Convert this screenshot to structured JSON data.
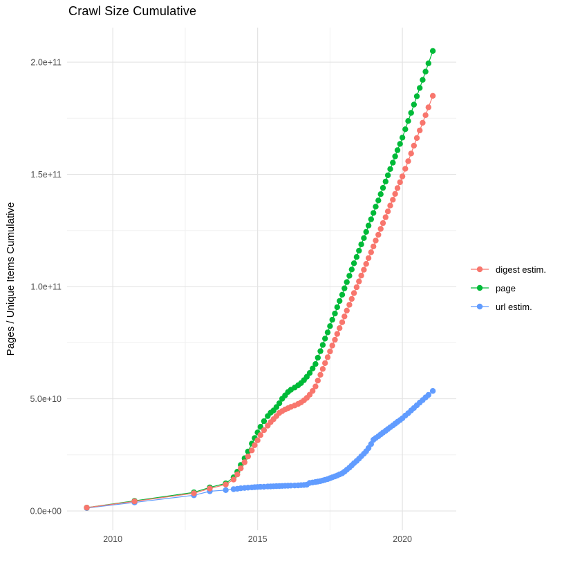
{
  "title": "Crawl Size Cumulative",
  "y_axis_label": "Pages / Unique Items Cumulative",
  "legend": {
    "items": [
      {
        "label": "digest estim.",
        "color": "#F8766D"
      },
      {
        "label": "page",
        "color": "#00BA38"
      },
      {
        "label": "url estim.",
        "color": "#619CFF"
      }
    ]
  },
  "colors": {
    "background": "#FFFFFF",
    "grid_major": "#E3E3E3",
    "grid_minor": "#F0F0F0",
    "tick_text": "#4D4D4D",
    "title_text": "#000000"
  },
  "chart_data": {
    "type": "scatter",
    "title": "Crawl Size Cumulative",
    "xlabel": "",
    "ylabel": "Pages / Unique Items Cumulative",
    "x_unit": "year",
    "y_unit": "pages / unique items (cumulative)",
    "grid": true,
    "legend_position": "right",
    "xlim": [
      2008.42,
      2021.86
    ],
    "ylim": [
      -8600000000.0,
      215400000000.0
    ],
    "x_ticks": [
      {
        "value": 2010,
        "label": "2010"
      },
      {
        "value": 2015,
        "label": "2015"
      },
      {
        "value": 2020,
        "label": "2020"
      }
    ],
    "y_ticks": [
      {
        "value": 0.0,
        "label": "0.0e+00"
      },
      {
        "value": 50000000000.0,
        "label": "5.0e+10"
      },
      {
        "value": 100000000000.0,
        "label": "1.0e+11"
      },
      {
        "value": 150000000000.0,
        "label": "1.5e+11"
      },
      {
        "value": 200000000000.0,
        "label": "2.0e+11"
      }
    ],
    "x_minor_gridlines": [
      2012.5,
      2017.5
    ],
    "y_minor_gridlines": [
      25000000000.0,
      75000000000.0,
      125000000000.0,
      175000000000.0
    ],
    "x": [
      2009.1,
      2010.75,
      2012.8,
      2013.35,
      2013.9,
      2014.17,
      2014.3,
      2014.42,
      2014.55,
      2014.67,
      2014.8,
      2014.9,
      2015.0,
      2015.1,
      2015.22,
      2015.35,
      2015.45,
      2015.55,
      2015.65,
      2015.75,
      2015.85,
      2015.95,
      2016.05,
      2016.15,
      2016.28,
      2016.4,
      2016.5,
      2016.6,
      2016.7,
      2016.8,
      2016.9,
      2017.0,
      2017.08,
      2017.17,
      2017.25,
      2017.33,
      2017.42,
      2017.5,
      2017.58,
      2017.67,
      2017.75,
      2017.83,
      2017.92,
      2018.0,
      2018.08,
      2018.17,
      2018.25,
      2018.33,
      2018.42,
      2018.5,
      2018.58,
      2018.67,
      2018.75,
      2018.83,
      2018.92,
      2019.0,
      2019.08,
      2019.17,
      2019.25,
      2019.33,
      2019.42,
      2019.5,
      2019.58,
      2019.67,
      2019.75,
      2019.83,
      2019.92,
      2020.0,
      2020.1,
      2020.2,
      2020.3,
      2020.4,
      2020.5,
      2020.6,
      2020.7,
      2020.8,
      2020.9,
      2021.05
    ],
    "series": [
      {
        "name": "digest estim.",
        "color": "#F8766D",
        "values": [
          1500000000.0,
          4300000000.0,
          7900000000.0,
          10000000000.0,
          11800000000.0,
          14000000000.0,
          16300000000.0,
          19000000000.0,
          21700000000.0,
          24300000000.0,
          27000000000.0,
          29300000000.0,
          31500000000.0,
          33800000000.0,
          36000000000.0,
          38000000000.0,
          39600000000.0,
          40900000000.0,
          42300000000.0,
          43700000000.0,
          44500000000.0,
          45200000000.0,
          45800000000.0,
          46400000000.0,
          47000000000.0,
          47700000000.0,
          48400000000.0,
          49300000000.0,
          50400000000.0,
          51800000000.0,
          53500000000.0,
          55500000000.0,
          58100000000.0,
          60700000000.0,
          63300000000.0,
          65900000000.0,
          68500000000.0,
          71100000000.0,
          73700000000.0,
          76300000000.0,
          78900000000.0,
          81500000000.0,
          84100000000.0,
          86700000000.0,
          89300000000.0,
          91900000000.0,
          94500000000.0,
          97100000000.0,
          99700000000.0,
          102300000000.0,
          104900000000.0,
          107500000000.0,
          110100000000.0,
          112700000000.0,
          115300000000.0,
          117900000000.0,
          120500000000.0,
          123100000000.0,
          125700000000.0,
          128300000000.0,
          130900000000.0,
          133500000000.0,
          136100000000.0,
          138700000000.0,
          141300000000.0,
          143900000000.0,
          146500000000.0,
          149100000000.0,
          152500000000.0,
          155900000000.0,
          159300000000.0,
          162800000000.0,
          166200000000.0,
          169600000000.0,
          173000000000.0,
          176400000000.0,
          179900000000.0,
          185000000000.0
        ]
      },
      {
        "name": "page",
        "color": "#00BA38",
        "values": [
          1500000000.0,
          4500000000.0,
          8300000000.0,
          10500000000.0,
          12300000000.0,
          15000000000.0,
          17500000000.0,
          20500000000.0,
          23500000000.0,
          26500000000.0,
          30000000000.0,
          32500000000.0,
          35000000000.0,
          37500000000.0,
          40000000000.0,
          42300000000.0,
          43800000000.0,
          44800000000.0,
          46300000000.0,
          48000000000.0,
          50000000000.0,
          51500000000.0,
          53000000000.0,
          54000000000.0,
          55000000000.0,
          56000000000.0,
          57000000000.0,
          58300000000.0,
          59800000000.0,
          61500000000.0,
          63500000000.0,
          65500000000.0,
          68300000000.0,
          71200000000.0,
          74000000000.0,
          76800000000.0,
          79600000000.0,
          82400000000.0,
          85200000000.0,
          88000000000.0,
          90800000000.0,
          93600000000.0,
          96400000000.0,
          99200000000.0,
          102000000000.0,
          104800000000.0,
          107600000000.0,
          110400000000.0,
          113200000000.0,
          116000000000.0,
          118800000000.0,
          121600000000.0,
          124400000000.0,
          127200000000.0,
          130000000000.0,
          132800000000.0,
          135600000000.0,
          138400000000.0,
          141200000000.0,
          144000000000.0,
          146800000000.0,
          149600000000.0,
          152400000000.0,
          155200000000.0,
          158000000000.0,
          160800000000.0,
          163600000000.0,
          166400000000.0,
          170100000000.0,
          173800000000.0,
          177400000000.0,
          181100000000.0,
          184800000000.0,
          188500000000.0,
          192100000000.0,
          195800000000.0,
          199500000000.0,
          205000000000.0
        ]
      },
      {
        "name": "url estim.",
        "color": "#619CFF",
        "values": [
          1300000000.0,
          3800000000.0,
          7000000000.0,
          8800000000.0,
          9300000000.0,
          9700000000.0,
          9900000000.0,
          10100000000.0,
          10250000000.0,
          10400000000.0,
          10500000000.0,
          10600000000.0,
          10700000000.0,
          10750000000.0,
          10800000000.0,
          10900000000.0,
          10950000000.0,
          11000000000.0,
          11050000000.0,
          11100000000.0,
          11150000000.0,
          11200000000.0,
          11250000000.0,
          11300000000.0,
          11350000000.0,
          11400000000.0,
          11500000000.0,
          11600000000.0,
          11700000000.0,
          12500000000.0,
          12700000000.0,
          12900000000.0,
          13100000000.0,
          13300000000.0,
          13600000000.0,
          13900000000.0,
          14200000000.0,
          14600000000.0,
          15000000000.0,
          15400000000.0,
          15800000000.0,
          16300000000.0,
          16800000000.0,
          17500000000.0,
          18400000000.0,
          19300000000.0,
          20300000000.0,
          21300000000.0,
          22300000000.0,
          23300000000.0,
          24400000000.0,
          25500000000.0,
          26600000000.0,
          28000000000.0,
          29800000000.0,
          31700000000.0,
          32500000000.0,
          33300000000.0,
          34100000000.0,
          34900000000.0,
          35700000000.0,
          36500000000.0,
          37300000000.0,
          38100000000.0,
          38900000000.0,
          39700000000.0,
          40500000000.0,
          41300000000.0,
          42500000000.0,
          43600000000.0,
          44800000000.0,
          45900000000.0,
          47100000000.0,
          48300000000.0,
          49400000000.0,
          50600000000.0,
          51700000000.0,
          53500000000.0
        ]
      }
    ]
  }
}
